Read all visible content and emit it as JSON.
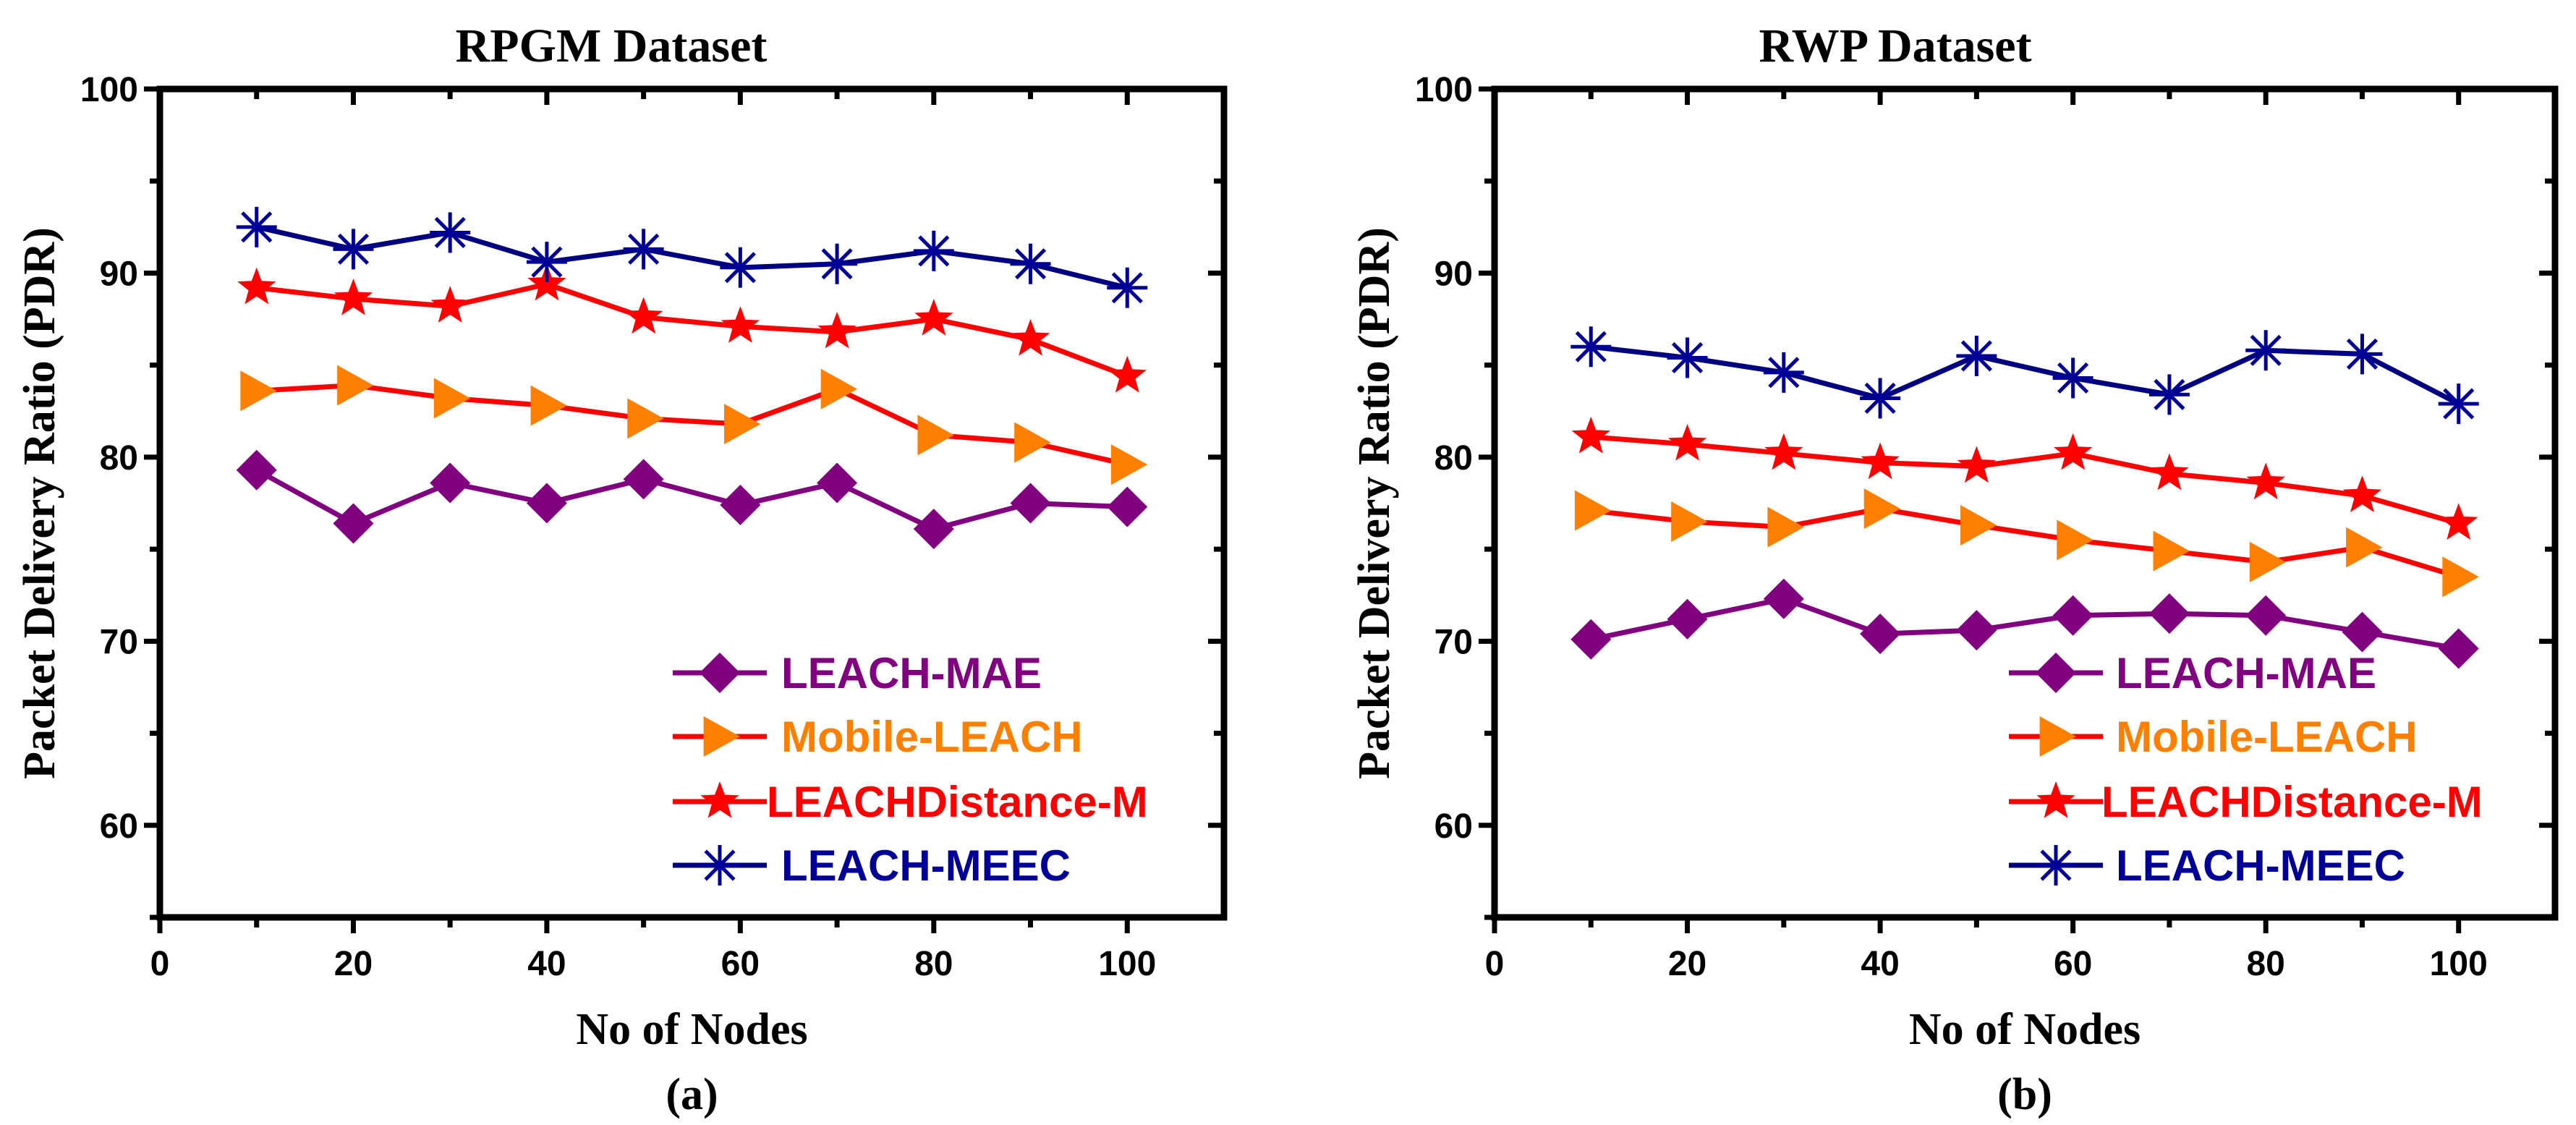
{
  "chart_data": [
    {
      "type": "line",
      "title": "RPGM Dataset",
      "xlabel": "No of Nodes",
      "ylabel": "Packet Delivery Ratio (PDR)",
      "caption": "(a)",
      "xlim": [
        0,
        110
      ],
      "ylim": [
        55,
        100
      ],
      "xticks": [
        0,
        20,
        40,
        60,
        80,
        100
      ],
      "yticks": [
        60,
        70,
        80,
        90,
        100
      ],
      "grid": false,
      "legend_position": "bottom-right",
      "x": [
        10,
        20,
        30,
        40,
        50,
        60,
        70,
        80,
        90,
        100
      ],
      "series": [
        {
          "name": "LEACH-MAE",
          "color": "#800080",
          "marker": "diamond",
          "values": [
            79.3,
            76.4,
            78.6,
            77.5,
            78.8,
            77.4,
            78.6,
            76.1,
            77.5,
            77.3
          ]
        },
        {
          "name": "Mobile-LEACH",
          "color": "#ff8000",
          "line_color": "#ff0000",
          "marker": "triangle-right",
          "values": [
            83.6,
            83.9,
            83.2,
            82.8,
            82.1,
            81.8,
            83.7,
            81.2,
            80.8,
            79.6
          ]
        },
        {
          "name": "LEACHDistance-M",
          "color": "#ff0000",
          "marker": "star",
          "values": [
            89.2,
            88.6,
            88.2,
            89.4,
            87.6,
            87.1,
            86.8,
            87.5,
            86.4,
            84.4
          ]
        },
        {
          "name": "LEACH-MEEC",
          "color": "#000099",
          "line_color": "#000080",
          "marker": "asterisk",
          "values": [
            92.5,
            91.3,
            92.2,
            90.6,
            91.3,
            90.3,
            90.5,
            91.2,
            90.5,
            89.2
          ]
        }
      ]
    },
    {
      "type": "line",
      "title": "RWP Dataset",
      "xlabel": "No of Nodes",
      "ylabel": "Packet Delivery Ratio (PDR)",
      "caption": "(b)",
      "xlim": [
        0,
        110
      ],
      "ylim": [
        55,
        100
      ],
      "xticks": [
        0,
        20,
        40,
        60,
        80,
        100
      ],
      "yticks": [
        60,
        70,
        80,
        90,
        100
      ],
      "grid": false,
      "legend_position": "bottom-right",
      "x": [
        10,
        20,
        30,
        40,
        50,
        60,
        70,
        80,
        90,
        100
      ],
      "series": [
        {
          "name": "LEACH-MAE",
          "color": "#800080",
          "marker": "diamond",
          "values": [
            70.1,
            71.2,
            72.3,
            70.4,
            70.6,
            71.4,
            71.5,
            71.4,
            70.5,
            69.6
          ]
        },
        {
          "name": "Mobile-LEACH",
          "color": "#ff8000",
          "line_color": "#ff0000",
          "marker": "triangle-right",
          "values": [
            77.1,
            76.5,
            76.2,
            77.2,
            76.3,
            75.5,
            74.9,
            74.3,
            75.1,
            73.5
          ]
        },
        {
          "name": "LEACHDistance-M",
          "color": "#ff0000",
          "marker": "star",
          "values": [
            81.1,
            80.7,
            80.2,
            79.7,
            79.5,
            80.2,
            79.1,
            78.6,
            77.9,
            76.4
          ]
        },
        {
          "name": "LEACH-MEEC",
          "color": "#000099",
          "line_color": "#000080",
          "marker": "asterisk",
          "values": [
            86.0,
            85.4,
            84.6,
            83.2,
            85.5,
            84.3,
            83.4,
            85.8,
            85.6,
            82.9
          ]
        }
      ]
    }
  ]
}
